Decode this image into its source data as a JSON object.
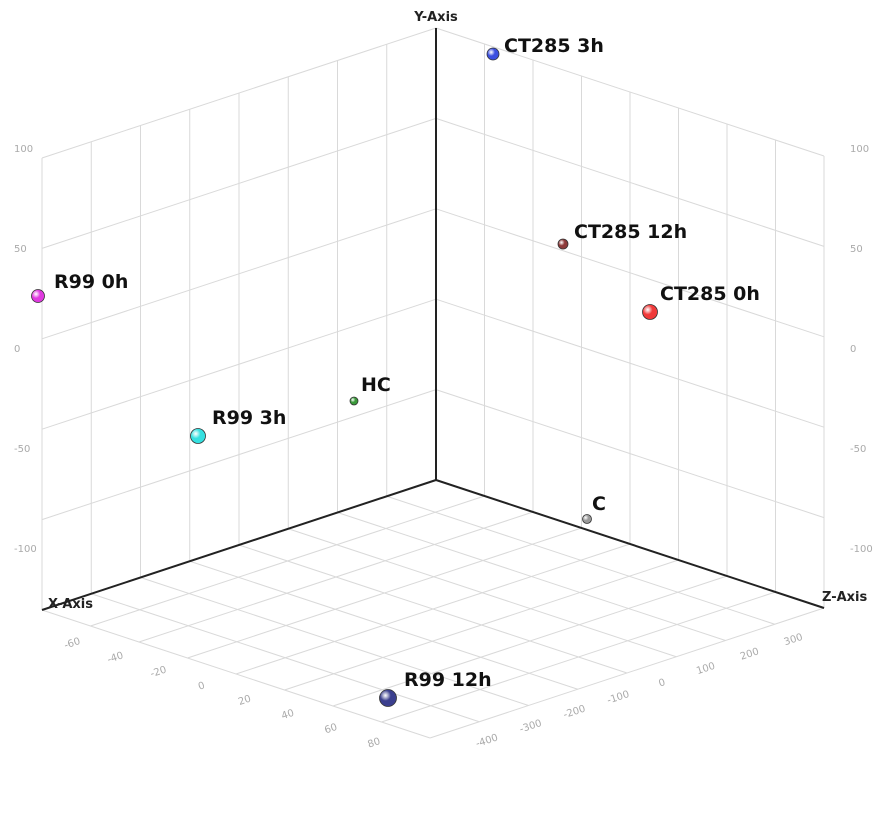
{
  "chart_data": {
    "type": "scatter",
    "projection": "3d",
    "axes": {
      "x": {
        "label": "X-Axis",
        "ticks": [
          "-60",
          "-40",
          "-20",
          "0",
          "20",
          "40",
          "60",
          "80"
        ]
      },
      "y": {
        "label": "Y-Axis",
        "ticks": [
          "-100",
          "-50",
          "0",
          "50",
          "100"
        ]
      },
      "z": {
        "label": "Z-Axis",
        "ticks": [
          "-400",
          "-300",
          "-200",
          "-100",
          "0",
          "100",
          "200",
          "300"
        ]
      }
    },
    "grid": true,
    "points": [
      {
        "label": "CT285 3h",
        "color": "#3b4fe0"
      },
      {
        "label": "CT285 12h",
        "color": "#8e3a3a"
      },
      {
        "label": "CT285 0h",
        "color": "#f03a3a"
      },
      {
        "label": "R99 0h",
        "color": "#e03ae0"
      },
      {
        "label": "HC",
        "color": "#3a9a3a"
      },
      {
        "label": "R99 3h",
        "color": "#35e0e0"
      },
      {
        "label": "C",
        "color": "#999999"
      },
      {
        "label": "R99 12h",
        "color": "#3b3f8e"
      }
    ]
  }
}
